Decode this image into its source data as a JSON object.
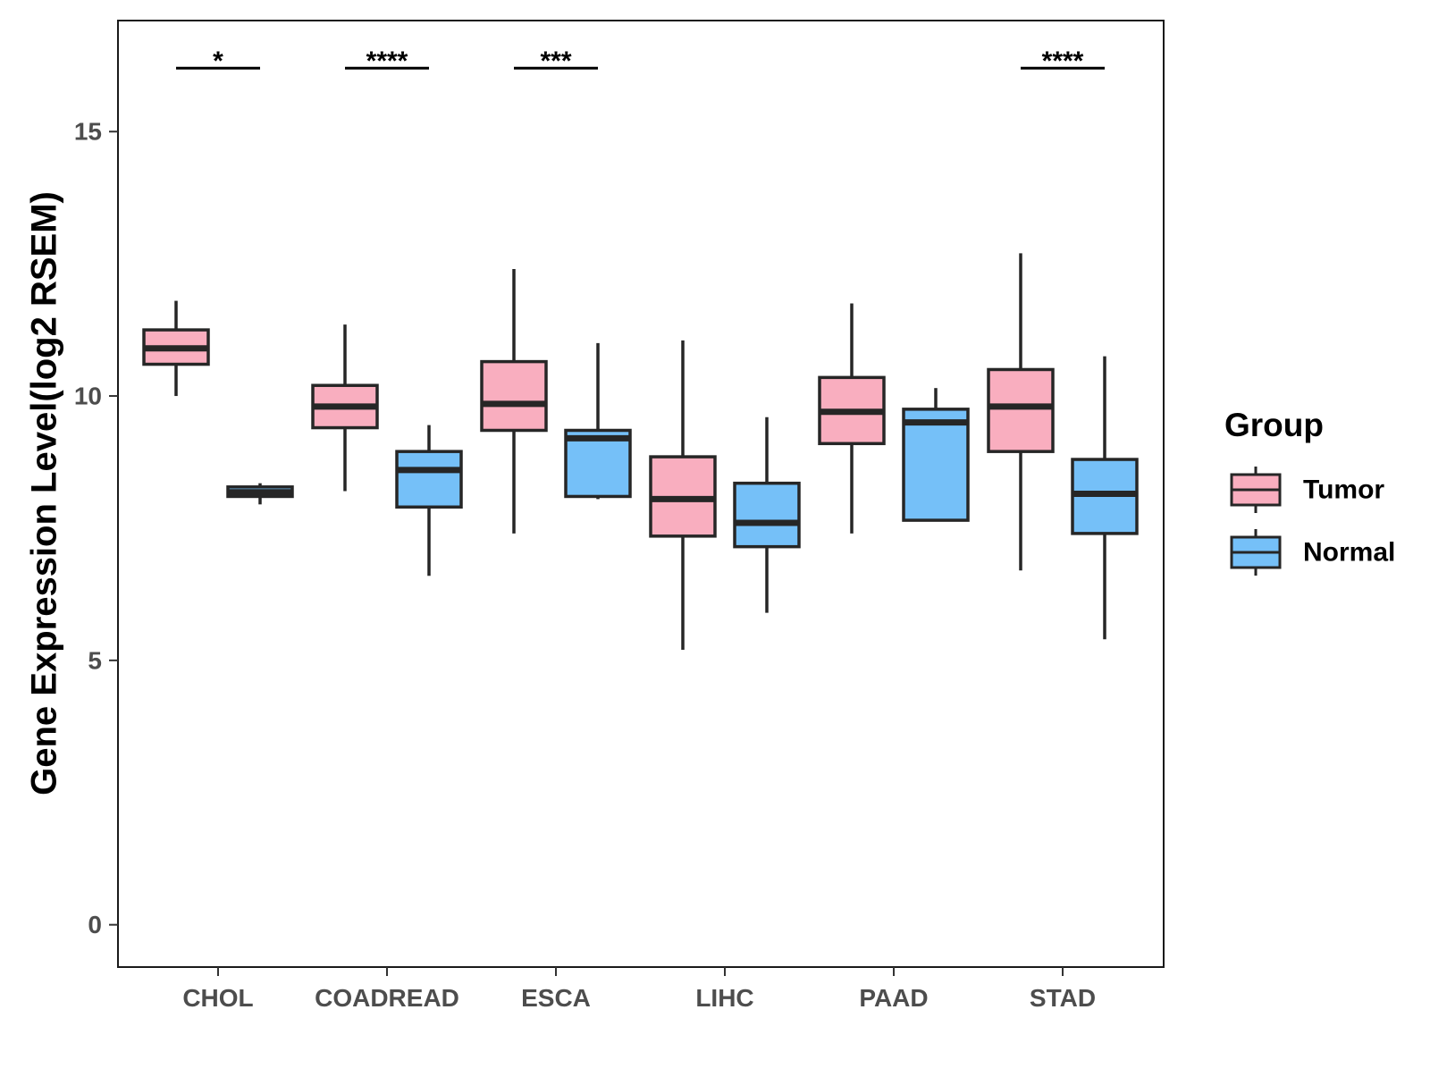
{
  "chart_data": {
    "type": "boxplot",
    "title": "",
    "xlabel": "",
    "ylabel": "Gene Expression Level(log2 RSEM)",
    "ylim": [
      -0.8,
      17.1
    ],
    "yticks": [
      0,
      5,
      10,
      15
    ],
    "grid": false,
    "categories": [
      "CHOL",
      "COADREAD",
      "ESCA",
      "LIHC",
      "PAAD",
      "STAD"
    ],
    "legend": {
      "title": "Group",
      "position": "right",
      "entries": [
        "Tumor",
        "Normal"
      ]
    },
    "colors": {
      "Tumor": "#f9aebf",
      "Normal": "#75c0f8",
      "outline": "#262626"
    },
    "series": [
      {
        "name": "Tumor",
        "boxes": [
          {
            "category": "CHOL",
            "whisker_low": 10.0,
            "q1": 10.6,
            "median": 10.9,
            "q3": 11.25,
            "whisker_high": 11.8
          },
          {
            "category": "COADREAD",
            "whisker_low": 8.2,
            "q1": 9.4,
            "median": 9.8,
            "q3": 10.2,
            "whisker_high": 11.35
          },
          {
            "category": "ESCA",
            "whisker_low": 7.4,
            "q1": 9.35,
            "median": 9.85,
            "q3": 10.65,
            "whisker_high": 12.4
          },
          {
            "category": "LIHC",
            "whisker_low": 5.2,
            "q1": 7.35,
            "median": 8.05,
            "q3": 8.85,
            "whisker_high": 11.05
          },
          {
            "category": "PAAD",
            "whisker_low": 7.4,
            "q1": 9.1,
            "median": 9.7,
            "q3": 10.35,
            "whisker_high": 11.75
          },
          {
            "category": "STAD",
            "whisker_low": 6.7,
            "q1": 8.95,
            "median": 9.8,
            "q3": 10.5,
            "whisker_high": 12.7
          }
        ]
      },
      {
        "name": "Normal",
        "boxes": [
          {
            "category": "CHOL",
            "whisker_low": 7.95,
            "q1": 8.1,
            "median": 8.18,
            "q3": 8.28,
            "whisker_high": 8.35
          },
          {
            "category": "COADREAD",
            "whisker_low": 6.6,
            "q1": 7.9,
            "median": 8.6,
            "q3": 8.95,
            "whisker_high": 9.45
          },
          {
            "category": "ESCA",
            "whisker_low": 8.05,
            "q1": 8.1,
            "median": 9.2,
            "q3": 9.35,
            "whisker_high": 11.0
          },
          {
            "category": "LIHC",
            "whisker_low": 5.9,
            "q1": 7.15,
            "median": 7.6,
            "q3": 8.35,
            "whisker_high": 9.6
          },
          {
            "category": "PAAD",
            "whisker_low": 7.65,
            "q1": 7.65,
            "median": 9.5,
            "q3": 9.75,
            "whisker_high": 10.15
          },
          {
            "category": "STAD",
            "whisker_low": 5.4,
            "q1": 7.4,
            "median": 8.15,
            "q3": 8.8,
            "whisker_high": 10.75
          }
        ]
      }
    ],
    "significance": [
      {
        "category": "CHOL",
        "label": "*",
        "y": 16.2
      },
      {
        "category": "COADREAD",
        "label": "****",
        "y": 16.2
      },
      {
        "category": "ESCA",
        "label": "***",
        "y": 16.2
      },
      {
        "category": "STAD",
        "label": "****",
        "y": 16.2
      }
    ]
  }
}
